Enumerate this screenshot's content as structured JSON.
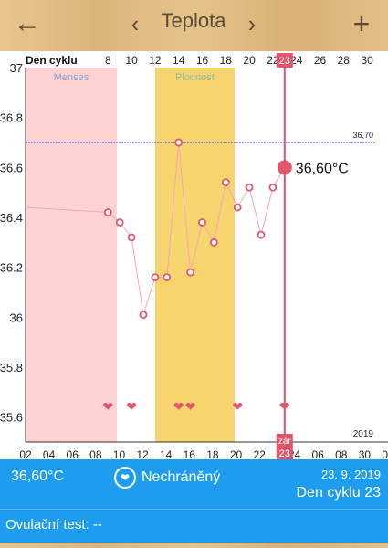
{
  "header": {
    "back_icon": "arrow-left-icon",
    "title": "Teplota",
    "prev_icon": "chevron-left-icon",
    "next_icon": "chevron-right-icon",
    "add_icon": "plus-icon"
  },
  "colors": {
    "menses": "#ffd3d3",
    "fertile": "#f7d56e",
    "accent": "#e0566b",
    "line": "#f4a7b6",
    "reference": "#2e3dd6",
    "info_bar": "#1e9df0"
  },
  "chart_data": {
    "type": "line",
    "top_axis_label": "Den cyklu",
    "top_ticks": [
      "8",
      "10",
      "12",
      "14",
      "16",
      "18",
      "20",
      "22",
      "23",
      "24",
      "26",
      "28",
      "30"
    ],
    "bottom_ticks": [
      "02",
      "04",
      "06",
      "08",
      "10",
      "12",
      "14",
      "16",
      "18",
      "20",
      "22",
      "23",
      "24",
      "06",
      "08",
      "30",
      "02"
    ],
    "selected_day": "23",
    "selected_marker_label": "zár",
    "year_label": "2019",
    "y_ticks": [
      "37",
      "36.8",
      "36.6",
      "36.4",
      "36.2",
      "36",
      "35.8",
      "35.6"
    ],
    "ylim": [
      35.5,
      37.0
    ],
    "regions": [
      {
        "name": "Menses",
        "from_day": 1,
        "to_day": 8.75
      },
      {
        "name": "Plodnost",
        "from_day": 12,
        "to_day": 18.75
      }
    ],
    "reference_line": {
      "value": 36.7,
      "label": "36,70"
    },
    "series": [
      {
        "x": [
          0,
          8,
          9,
          10,
          11,
          12,
          13,
          14,
          15,
          16,
          17,
          18,
          19,
          20,
          21,
          22,
          23
        ],
        "values": [
          36.44,
          36.42,
          36.38,
          36.32,
          36.01,
          36.16,
          36.16,
          36.7,
          36.18,
          36.38,
          36.3,
          36.54,
          36.44,
          36.52,
          36.33,
          36.52,
          36.6
        ]
      }
    ],
    "open_point_days": [
      8,
      9,
      10,
      11,
      12,
      13,
      14,
      15,
      16,
      17,
      18,
      19,
      20,
      21,
      22
    ],
    "highlight": {
      "day": 23,
      "value": 36.6,
      "label": "36,60°C"
    },
    "heart_days": [
      8,
      10,
      14,
      15,
      19,
      23
    ]
  },
  "info": {
    "temperature": "36,60°C",
    "protection_icon": "heart-icon",
    "protection": "Nechráněný",
    "date": "23. 9. 2019",
    "cycle_day": "Den cyklu 23"
  },
  "ovulation": {
    "label": "Ovulační test: --"
  }
}
